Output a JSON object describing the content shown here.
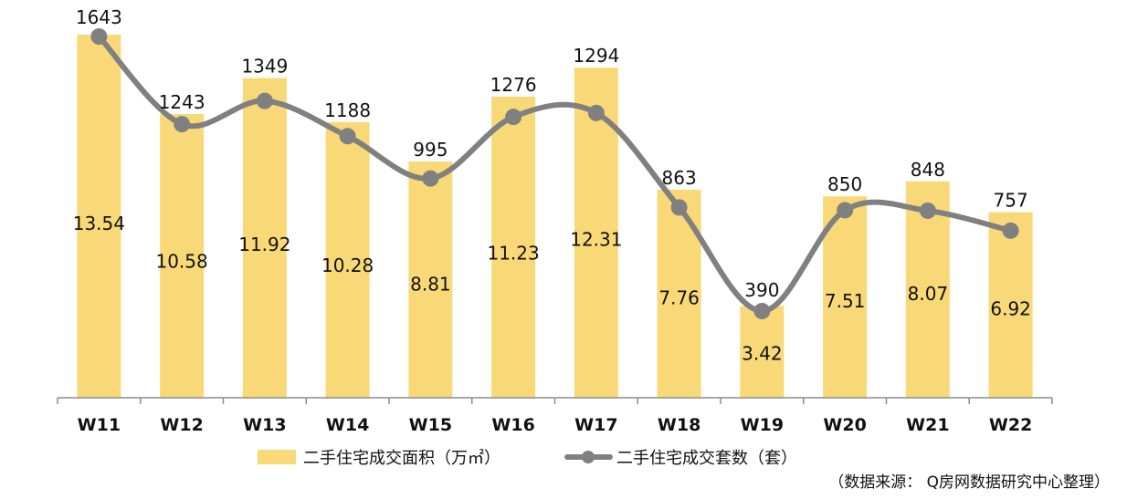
{
  "chart_data": {
    "type": "bar",
    "categories": [
      "W11",
      "W12",
      "W13",
      "W14",
      "W15",
      "W16",
      "W17",
      "W18",
      "W19",
      "W20",
      "W21",
      "W22"
    ],
    "series": [
      {
        "name": "二手住宅成交面积（万㎡）",
        "type": "bar",
        "axis": "left",
        "color": "#F9D977",
        "values": [
          13.54,
          10.58,
          11.92,
          10.28,
          8.81,
          11.23,
          12.31,
          7.76,
          3.42,
          7.51,
          8.07,
          6.92
        ]
      },
      {
        "name": "二手住宅成交套数（套）",
        "type": "line",
        "axis": "right",
        "smooth": true,
        "color": "#808080",
        "values": [
          1643,
          1243,
          1349,
          1188,
          995,
          1276,
          1294,
          863,
          390,
          850,
          848,
          757
        ]
      }
    ],
    "legend_position": "bottom",
    "grid": false,
    "annotations": [
      "（数据来源： Q房网数据研究中心整理）"
    ]
  }
}
